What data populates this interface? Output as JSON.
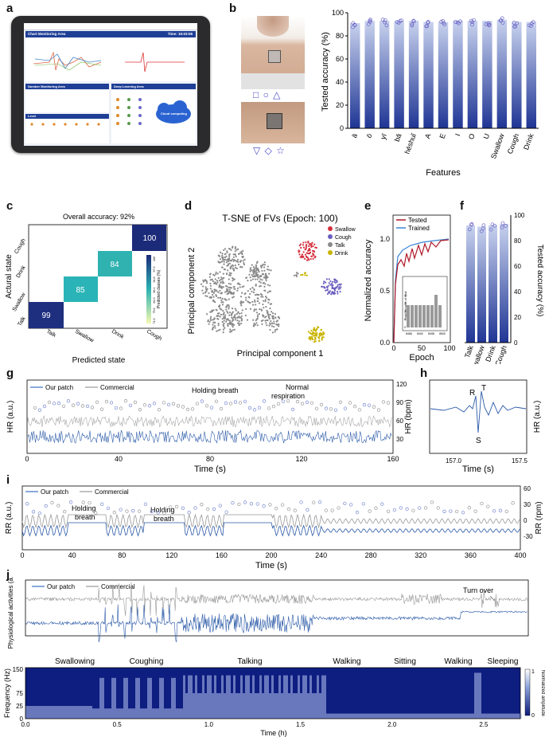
{
  "panels": {
    "a": "a",
    "b": "b",
    "c": "c",
    "d": "d",
    "e": "e",
    "f": "f",
    "g": "g",
    "h": "h",
    "i": "i",
    "j": "j"
  },
  "tablet": {
    "chart_area": "Chart Monitoring Area",
    "time_label": "Time: 15:03:06",
    "number_area": "Number Monitoring Area",
    "deep_area": "Deep Learning Area",
    "level": "Level",
    "cloud": "Cloud computing"
  },
  "b_symbols": {
    "top": "□ ○ △",
    "bottom": "▽ ◇ ☆"
  },
  "chart_b": {
    "type": "bar",
    "categories": [
      "ā",
      "ō",
      "yī",
      "bā",
      "hēshuǐ",
      "A",
      "E",
      "I",
      "O",
      "U",
      "Swallow",
      "Cough",
      "Drink"
    ],
    "values": [
      91,
      93,
      93,
      93,
      93,
      92,
      92,
      93,
      93,
      93,
      94,
      92,
      92
    ],
    "ylabel": "Tested accuracy (%)",
    "xlabel": "Features",
    "yticks": [
      "0",
      "20",
      "40",
      "60",
      "80",
      "100"
    ],
    "ylim": [
      0,
      100
    ]
  },
  "chart_c": {
    "type": "heatmap",
    "title": "Overall accuracy: 92%",
    "rows": [
      "Cough",
      "Drink",
      "Swallow",
      "Talk"
    ],
    "cols": [
      "Talk",
      "Swallow",
      "Drink",
      "Cough"
    ],
    "diag": [
      "99",
      "85",
      "84",
      "100"
    ],
    "xlabel": "Predicted state",
    "ylabel": "Actural state",
    "cbar_label": "Predicted classes (%)",
    "cbar_ticks": [
      "100",
      "97.0",
      "91.8",
      "86.4",
      "81.0",
      "75.6",
      "71.0"
    ]
  },
  "chart_d": {
    "type": "scatter",
    "title": "T-SNE of FVs (Epoch: 100)",
    "legend": [
      "Swallow",
      "Cough",
      "Talk",
      "Drink"
    ],
    "colors": [
      "#d32f3c",
      "#6a5fc0",
      "#8a8a8a",
      "#c9b400"
    ],
    "xlabel": "Principal component 1",
    "ylabel": "Principal component 2"
  },
  "chart_e": {
    "type": "line",
    "legend": [
      "Tested",
      "Trained"
    ],
    "ylabel": "Normalized accuracy",
    "xlabel": "Epoch",
    "xticks": [
      "0",
      "50",
      "100"
    ],
    "yticks": [
      "0.0",
      "0.5",
      "1.0"
    ],
    "inset_ylabel": "Predicted value of input",
    "inset_xticks": [
      "8486",
      "8492",
      "8498",
      "8500"
    ],
    "inset_yticks": [
      "0",
      "1",
      "2",
      "3",
      "4"
    ]
  },
  "chart_f": {
    "type": "bar",
    "categories": [
      "Talk",
      "Swallow",
      "Drink",
      "Cough"
    ],
    "values": [
      92,
      91,
      92,
      93
    ],
    "ylabel": "Tested accuracy (%)",
    "yticks": [
      "0",
      "20",
      "40",
      "60",
      "80",
      "100"
    ],
    "ylim": [
      0,
      100
    ]
  },
  "chart_g": {
    "type": "line",
    "legend": [
      "Our patch",
      "Commercial"
    ],
    "annotations": [
      "Holding breath",
      "Normal",
      "respiration"
    ],
    "xlabel": "Time (s)",
    "ylabel": "HR (a.u.)",
    "y2label": "HR (bpm)",
    "xticks": [
      "0",
      "40",
      "80",
      "120",
      "160"
    ],
    "y2ticks": [
      "120",
      "90",
      "60",
      "30"
    ]
  },
  "chart_h": {
    "type": "line",
    "peaks": [
      "R",
      "T",
      "S"
    ],
    "xticks": [
      "157.0",
      "157.5"
    ],
    "xlabel": "Time (s)",
    "ylabel": "HR (a.u.)"
  },
  "chart_i": {
    "type": "line",
    "legend": [
      "Our patch",
      "Commercial"
    ],
    "annotations": [
      "Holding",
      "breath",
      "Holding",
      "breath"
    ],
    "xlabel": "Time (s)",
    "ylabel": "RR (a.u.)",
    "y2label": "RR (rpm)",
    "xticks": [
      "0",
      "40",
      "80",
      "120",
      "160",
      "200",
      "240",
      "280",
      "320",
      "360",
      "400"
    ],
    "y2ticks": [
      "60",
      "30",
      "0",
      "-30"
    ]
  },
  "chart_j": {
    "type": "line",
    "legend": [
      "Our patch",
      "Commercial"
    ],
    "turnover": "Turn over",
    "ylabel": "Physiological activities (a.u.)",
    "activities": [
      "Swallowing",
      "Coughing",
      "Talking",
      "Walking",
      "Sitting",
      "Walking",
      "Sleeping"
    ],
    "spec_ylabel": "Frequency (Hz)",
    "spec_yticks": [
      "150",
      "75",
      "25",
      "0"
    ],
    "xlabel": "Time (h)",
    "xticks": [
      "0.0",
      "0.5",
      "1.0",
      "1.5",
      "2.0",
      "2.5"
    ],
    "cbar_label": "Normalized amplitude",
    "cbar_ticks": [
      "1",
      "0"
    ]
  }
}
